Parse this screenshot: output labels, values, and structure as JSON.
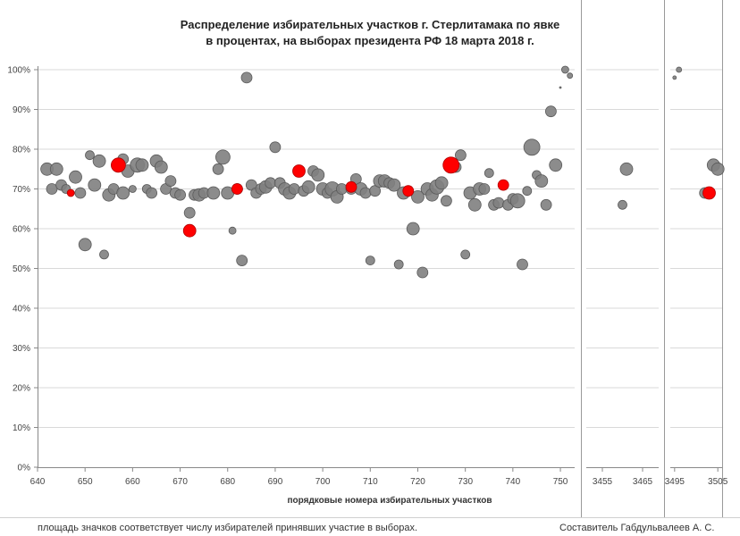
{
  "chart_data": {
    "type": "scatter",
    "title_lines": [
      "Распределение избирательных участков г. Стерлитамака по явке",
      "в процентах, на выборах президента  РФ 18 марта 2018 г."
    ],
    "xlabel": "порядковые номера избирательных участков",
    "ylim": [
      0,
      1
    ],
    "y_ticks": [
      "0%",
      "10%",
      "20%",
      "30%",
      "40%",
      "50%",
      "60%",
      "70%",
      "80%",
      "90%",
      "100%"
    ],
    "panels": [
      {
        "xlim": [
          640,
          753
        ],
        "ticks": [
          640,
          650,
          660,
          670,
          680,
          690,
          700,
          710,
          720,
          730,
          740,
          750
        ]
      },
      {
        "xlim": [
          3451,
          3469
        ],
        "ticks": [
          3455,
          3465
        ]
      },
      {
        "xlim": [
          3494,
          3506
        ],
        "ticks": [
          3495,
          3505
        ]
      }
    ],
    "series": [
      {
        "name": "grey",
        "color": "#808080",
        "points": [
          [
            642,
            0.75,
            7
          ],
          [
            643,
            0.7,
            6
          ],
          [
            644,
            0.75,
            7
          ],
          [
            645,
            0.71,
            6
          ],
          [
            646,
            0.7,
            5
          ],
          [
            648,
            0.73,
            7
          ],
          [
            649,
            0.69,
            6
          ],
          [
            650,
            0.56,
            7
          ],
          [
            651,
            0.785,
            5
          ],
          [
            652,
            0.71,
            7
          ],
          [
            653,
            0.77,
            7
          ],
          [
            654,
            0.535,
            5
          ],
          [
            655,
            0.685,
            7
          ],
          [
            656,
            0.7,
            6
          ],
          [
            658,
            0.69,
            7
          ],
          [
            658,
            0.775,
            6
          ],
          [
            659,
            0.745,
            7
          ],
          [
            660,
            0.7,
            4
          ],
          [
            661,
            0.76,
            8
          ],
          [
            662,
            0.76,
            7
          ],
          [
            663,
            0.7,
            5
          ],
          [
            664,
            0.69,
            6
          ],
          [
            665,
            0.77,
            7
          ],
          [
            666,
            0.755,
            7
          ],
          [
            667,
            0.7,
            6
          ],
          [
            668,
            0.72,
            6
          ],
          [
            669,
            0.69,
            6
          ],
          [
            670,
            0.685,
            6
          ],
          [
            672,
            0.64,
            6
          ],
          [
            673,
            0.685,
            6
          ],
          [
            674,
            0.685,
            7
          ],
          [
            675,
            0.69,
            6
          ],
          [
            677,
            0.69,
            7
          ],
          [
            678,
            0.75,
            6
          ],
          [
            679,
            0.78,
            8
          ],
          [
            680,
            0.69,
            7
          ],
          [
            681,
            0.595,
            4
          ],
          [
            682,
            0.7,
            6
          ],
          [
            683,
            0.52,
            6
          ],
          [
            684,
            0.98,
            6
          ],
          [
            685,
            0.71,
            6
          ],
          [
            686,
            0.69,
            6
          ],
          [
            687,
            0.7,
            6
          ],
          [
            688,
            0.705,
            7
          ],
          [
            689,
            0.715,
            6
          ],
          [
            690,
            0.805,
            6
          ],
          [
            691,
            0.715,
            6
          ],
          [
            692,
            0.7,
            7
          ],
          [
            693,
            0.69,
            7
          ],
          [
            694,
            0.7,
            6
          ],
          [
            696,
            0.695,
            6
          ],
          [
            697,
            0.705,
            7
          ],
          [
            698,
            0.745,
            6
          ],
          [
            699,
            0.735,
            7
          ],
          [
            700,
            0.7,
            7
          ],
          [
            701,
            0.69,
            6
          ],
          [
            702,
            0.7,
            8
          ],
          [
            703,
            0.68,
            7
          ],
          [
            704,
            0.7,
            6
          ],
          [
            706,
            0.7,
            6
          ],
          [
            707,
            0.725,
            6
          ],
          [
            708,
            0.7,
            7
          ],
          [
            709,
            0.69,
            6
          ],
          [
            710,
            0.52,
            5
          ],
          [
            711,
            0.695,
            6
          ],
          [
            712,
            0.72,
            7
          ],
          [
            713,
            0.72,
            7
          ],
          [
            714,
            0.715,
            6
          ],
          [
            715,
            0.71,
            7
          ],
          [
            716,
            0.51,
            5
          ],
          [
            717,
            0.69,
            7
          ],
          [
            719,
            0.6,
            7
          ],
          [
            720,
            0.68,
            7
          ],
          [
            721,
            0.49,
            6
          ],
          [
            722,
            0.7,
            7
          ],
          [
            723,
            0.685,
            7
          ],
          [
            724,
            0.705,
            8
          ],
          [
            725,
            0.715,
            7
          ],
          [
            726,
            0.67,
            6
          ],
          [
            728,
            0.755,
            6
          ],
          [
            729,
            0.785,
            6
          ],
          [
            730,
            0.535,
            5
          ],
          [
            731,
            0.69,
            7
          ],
          [
            732,
            0.66,
            7
          ],
          [
            733,
            0.7,
            7
          ],
          [
            734,
            0.7,
            6
          ],
          [
            735,
            0.74,
            5
          ],
          [
            736,
            0.66,
            6
          ],
          [
            737,
            0.665,
            6
          ],
          [
            739,
            0.66,
            6
          ],
          [
            740,
            0.675,
            6
          ],
          [
            741,
            0.67,
            8
          ],
          [
            742,
            0.51,
            6
          ],
          [
            743,
            0.695,
            5
          ],
          [
            744,
            0.805,
            9
          ],
          [
            745,
            0.735,
            5
          ],
          [
            746,
            0.72,
            7
          ],
          [
            747,
            0.66,
            6
          ],
          [
            748,
            0.895,
            6
          ],
          [
            749,
            0.76,
            7
          ],
          [
            750,
            0.955,
            1
          ],
          [
            751,
            1.0,
            4
          ],
          [
            752,
            0.985,
            3
          ],
          [
            3460,
            0.66,
            5
          ],
          [
            3461,
            0.75,
            7
          ],
          [
            3495,
            0.98,
            2
          ],
          [
            3496,
            1.0,
            3
          ],
          [
            3502,
            0.69,
            6
          ],
          [
            3504,
            0.76,
            7
          ],
          [
            3505,
            0.75,
            7
          ]
        ]
      },
      {
        "name": "red",
        "color": "#ff0000",
        "points": [
          [
            647,
            0.69,
            4
          ],
          [
            657,
            0.76,
            8
          ],
          [
            672,
            0.595,
            7
          ],
          [
            682,
            0.7,
            6
          ],
          [
            695,
            0.745,
            7
          ],
          [
            706,
            0.705,
            6
          ],
          [
            718,
            0.695,
            6
          ],
          [
            727,
            0.76,
            9
          ],
          [
            738,
            0.71,
            6
          ],
          [
            3503,
            0.69,
            7
          ]
        ]
      }
    ]
  },
  "footer": {
    "note": "площадь значков соответствует числу избирателей принявших участие в выборах.",
    "author": "Составитель Габдульвалеев А. С."
  }
}
